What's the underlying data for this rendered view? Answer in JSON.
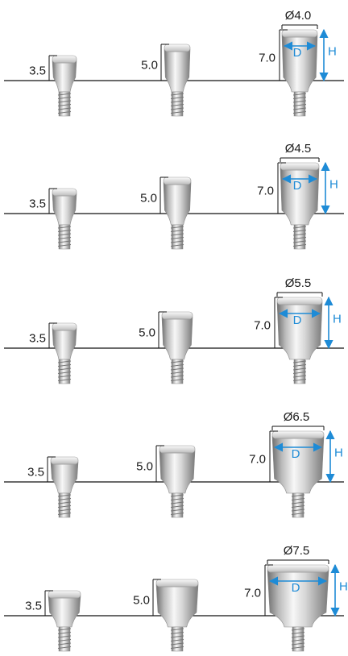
{
  "colors": {
    "arrow": "#1e8bd6",
    "metal_light": "#f4f4f4",
    "metal_dark": "#7d7d7d",
    "line": "#111111"
  },
  "rows": [
    {
      "diameter": "Ø4.0",
      "heights": [
        "3.5",
        "5.0",
        "7.0"
      ],
      "d_label": "D",
      "h_label": "H"
    },
    {
      "diameter": "Ø4.5",
      "heights": [
        "3.5",
        "5.0",
        "7.0"
      ],
      "d_label": "D",
      "h_label": "H"
    },
    {
      "diameter": "Ø5.5",
      "heights": [
        "3.5",
        "5.0",
        "7.0"
      ],
      "d_label": "D",
      "h_label": "H"
    },
    {
      "diameter": "Ø6.5",
      "heights": [
        "3.5",
        "5.0",
        "7.0"
      ],
      "d_label": "D",
      "h_label": "H"
    },
    {
      "diameter": "Ø7.5",
      "heights": [
        "3.5",
        "5.0",
        "7.0"
      ],
      "d_label": "D",
      "h_label": "H"
    }
  ]
}
